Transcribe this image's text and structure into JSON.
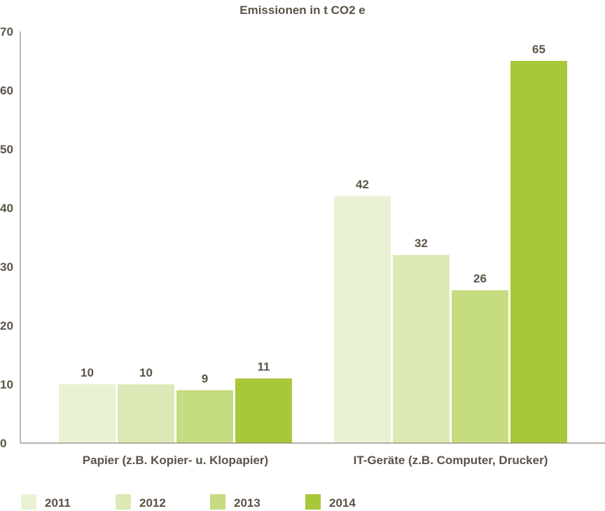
{
  "chart_data": {
    "type": "bar",
    "title": "Emissionen in t CO2 e",
    "categories": [
      "Papier (z.B. Kopier- u. Klopapier)",
      "IT-Geräte (z.B. Computer, Drucker)"
    ],
    "series": [
      {
        "name": "2011",
        "values": [
          10,
          42
        ],
        "color": "#eaf2d4"
      },
      {
        "name": "2012",
        "values": [
          10,
          32
        ],
        "color": "#dce9b6"
      },
      {
        "name": "2013",
        "values": [
          9,
          26
        ],
        "color": "#c5dc80"
      },
      {
        "name": "2014",
        "values": [
          11,
          65
        ],
        "color": "#a8c83a"
      }
    ],
    "y_ticks": [
      "0",
      "10",
      "20",
      "30",
      "40",
      "50",
      "60",
      "70"
    ],
    "ylim": [
      0,
      70
    ],
    "grid": false,
    "legend_position": "bottom-left"
  }
}
